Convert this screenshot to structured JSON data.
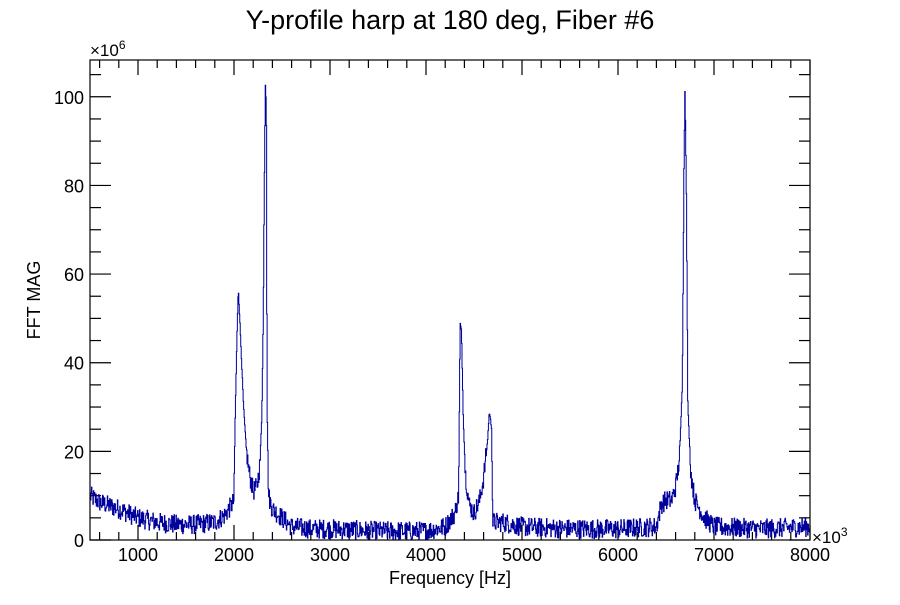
{
  "chart_data": {
    "type": "line",
    "title": "Y-profile harp at 180 deg, Fiber #6",
    "xlabel": "Frequency [Hz]",
    "ylabel": "FFT MAG",
    "x_multiplier": "×10",
    "x_multiplier_exp": "3",
    "y_multiplier": "×10",
    "y_multiplier_exp": "6",
    "xlim": [
      500,
      8000
    ],
    "ylim": [
      0,
      108.3
    ],
    "x_ticks": [
      1000,
      2000,
      3000,
      4000,
      5000,
      6000,
      7000,
      8000
    ],
    "x_tick_labels": [
      "1000",
      "2000",
      "3000",
      "4000",
      "5000",
      "6000",
      "7000",
      "8000"
    ],
    "x_minor_step": 200,
    "y_ticks": [
      0,
      20,
      40,
      60,
      80,
      100
    ],
    "y_tick_labels": [
      "0",
      "20",
      "40",
      "60",
      "80",
      "100"
    ],
    "y_minor_step": 5,
    "grid": false,
    "series": [
      {
        "name": "FFT magnitude",
        "color": "#00009c",
        "noise_amplitude": 2.2,
        "points": [
          [
            500,
            10
          ],
          [
            600,
            8.5
          ],
          [
            800,
            7
          ],
          [
            1000,
            5
          ],
          [
            1200,
            4
          ],
          [
            1400,
            3.5
          ],
          [
            1600,
            3.5
          ],
          [
            1800,
            4
          ],
          [
            1900,
            5.5
          ],
          [
            1980,
            8
          ],
          [
            2000,
            9
          ],
          [
            2010,
            25
          ],
          [
            2030,
            45
          ],
          [
            2045,
            57
          ],
          [
            2060,
            50
          ],
          [
            2080,
            40
          ],
          [
            2100,
            30
          ],
          [
            2130,
            20
          ],
          [
            2160,
            15
          ],
          [
            2200,
            11
          ],
          [
            2240,
            12
          ],
          [
            2270,
            17
          ],
          [
            2290,
            28
          ],
          [
            2305,
            50
          ],
          [
            2315,
            78
          ],
          [
            2327,
            103
          ],
          [
            2337,
            98
          ],
          [
            2345,
            30
          ],
          [
            2360,
            10
          ],
          [
            2400,
            7
          ],
          [
            2500,
            5
          ],
          [
            2600,
            3
          ],
          [
            2800,
            2.5
          ],
          [
            3000,
            2.5
          ],
          [
            3500,
            2
          ],
          [
            4000,
            2
          ],
          [
            4200,
            3
          ],
          [
            4300,
            6
          ],
          [
            4340,
            10
          ],
          [
            4348,
            30
          ],
          [
            4356,
            49
          ],
          [
            4370,
            47
          ],
          [
            4388,
            28
          ],
          [
            4410,
            15
          ],
          [
            4450,
            8
          ],
          [
            4500,
            6
          ],
          [
            4560,
            9
          ],
          [
            4600,
            14
          ],
          [
            4640,
            22
          ],
          [
            4660,
            29
          ],
          [
            4685,
            25
          ],
          [
            4695,
            4
          ],
          [
            4800,
            4
          ],
          [
            5000,
            3
          ],
          [
            5500,
            2.5
          ],
          [
            6000,
            2.5
          ],
          [
            6400,
            3
          ],
          [
            6450,
            8
          ],
          [
            6500,
            9
          ],
          [
            6560,
            9
          ],
          [
            6600,
            12
          ],
          [
            6640,
            18
          ],
          [
            6670,
            35
          ],
          [
            6688,
            85
          ],
          [
            6698,
            102
          ],
          [
            6712,
            80
          ],
          [
            6728,
            30
          ],
          [
            6760,
            15
          ],
          [
            6800,
            9
          ],
          [
            6900,
            5
          ],
          [
            7000,
            3
          ],
          [
            7500,
            2.5
          ],
          [
            8000,
            3
          ]
        ]
      }
    ]
  }
}
